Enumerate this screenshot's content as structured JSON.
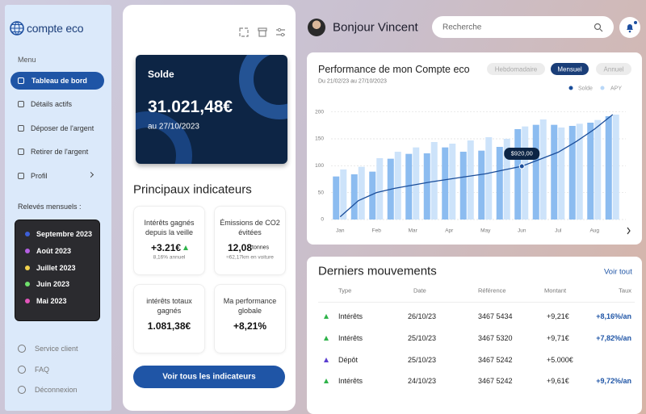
{
  "sidebar": {
    "brand": "compte eco",
    "menu_label": "Menu",
    "menu": [
      "Tableau de bord",
      "Détails actifs",
      "Déposer de l'argent",
      "Retirer de l'argent",
      "Profil"
    ],
    "statements_label": "Relevés mensuels :",
    "statements": [
      {
        "label": "Septembre 2023",
        "color": "#3d5fd8"
      },
      {
        "label": "Août 2023",
        "color": "#b45fe2"
      },
      {
        "label": "Juillet 2023",
        "color": "#f1d14d"
      },
      {
        "label": "Juin 2023",
        "color": "#6fe06c"
      },
      {
        "label": "Mai 2023",
        "color": "#e255bb"
      }
    ],
    "footer": [
      "Service client",
      "FAQ",
      "Déconnexion"
    ]
  },
  "balance_card": {
    "label": "Solde",
    "amount": "31.021,48€",
    "date": "au 27/10/2023"
  },
  "indicators": {
    "title": "Principaux indicateurs",
    "items": [
      {
        "title": "Intérêts gagnés depuis la veille",
        "value": "+3.21€",
        "note": "8,16% annuel"
      },
      {
        "title": "Émissions de CO2 évitées",
        "value": "12,08",
        "unit": "tonnes",
        "note": "≈62,17km en voiture"
      },
      {
        "title": "intérêts totaux gagnés",
        "value": "1.081,38€"
      },
      {
        "title": "Ma performance globale",
        "value": "+8,21%"
      }
    ],
    "button": "Voir tous les indicateurs"
  },
  "header": {
    "greeting": "Bonjour Vincent",
    "search_placeholder": "Recherche"
  },
  "performance": {
    "title": "Performance de mon Compte eco",
    "subtitle": "Du 21/02/23 au 27/10/2023",
    "tabs": [
      "Hebdomadaire",
      "Mensuel",
      "Annuel"
    ],
    "active_tab": 1
  },
  "chart_data": {
    "type": "bar",
    "categories": [
      "Jan",
      null,
      "Feb",
      null,
      "Mar",
      null,
      "Apr",
      null,
      "May",
      null,
      "Jun",
      null,
      "Jul",
      null,
      "Aug",
      null
    ],
    "series": [
      {
        "name": "Solde",
        "color": "#8cbcf0",
        "values": [
          80,
          84,
          89,
          113,
          122,
          123,
          134,
          126,
          128,
          135,
          168,
          176,
          176,
          174,
          180,
          192
        ]
      },
      {
        "name": "APY",
        "color": "#cde3fa",
        "values": [
          93,
          98,
          114,
          126,
          134,
          144,
          141,
          147,
          153,
          150,
          173,
          186,
          171,
          178,
          185,
          195
        ]
      }
    ],
    "line": {
      "color": "#1a4d9a",
      "values": [
        5,
        35,
        50,
        58,
        64,
        70,
        75,
        80,
        85,
        92,
        99,
        112,
        125,
        145,
        168,
        195
      ]
    },
    "annotation": {
      "text": "$920,00",
      "index": 10
    },
    "legend_colors": [
      "#1a4d9a",
      "#b9d8f8"
    ],
    "ylim": [
      0,
      216
    ],
    "yticks": [
      0,
      50,
      100,
      150,
      200
    ],
    "grid": true
  },
  "movements": {
    "title": "Derniers mouvements",
    "link": "Voir tout",
    "columns": [
      "Type",
      "Date",
      "Référence",
      "Montant",
      "Taux"
    ],
    "rows": [
      {
        "type": "Intérêts",
        "date": "26/10/23",
        "reference": "3467 5434",
        "amount": "+9,21€",
        "rate": "+8,16%/an",
        "icon_color": "#2fb34a"
      },
      {
        "type": "Intérêts",
        "date": "25/10/23",
        "reference": "3467 5320",
        "amount": "+9,71€",
        "rate": "+7,82%/an",
        "icon_color": "#2fb34a"
      },
      {
        "type": "Dépôt",
        "date": "25/10/23",
        "reference": "3467 5242",
        "amount": "+5.000€",
        "icon_color": "#5b3fd0"
      },
      {
        "type": "Intérêts",
        "date": "24/10/23",
        "reference": "3467 5242",
        "amount": "+9,61€",
        "rate": "+9,72%/an",
        "icon_color": "#2fb34a"
      }
    ]
  }
}
